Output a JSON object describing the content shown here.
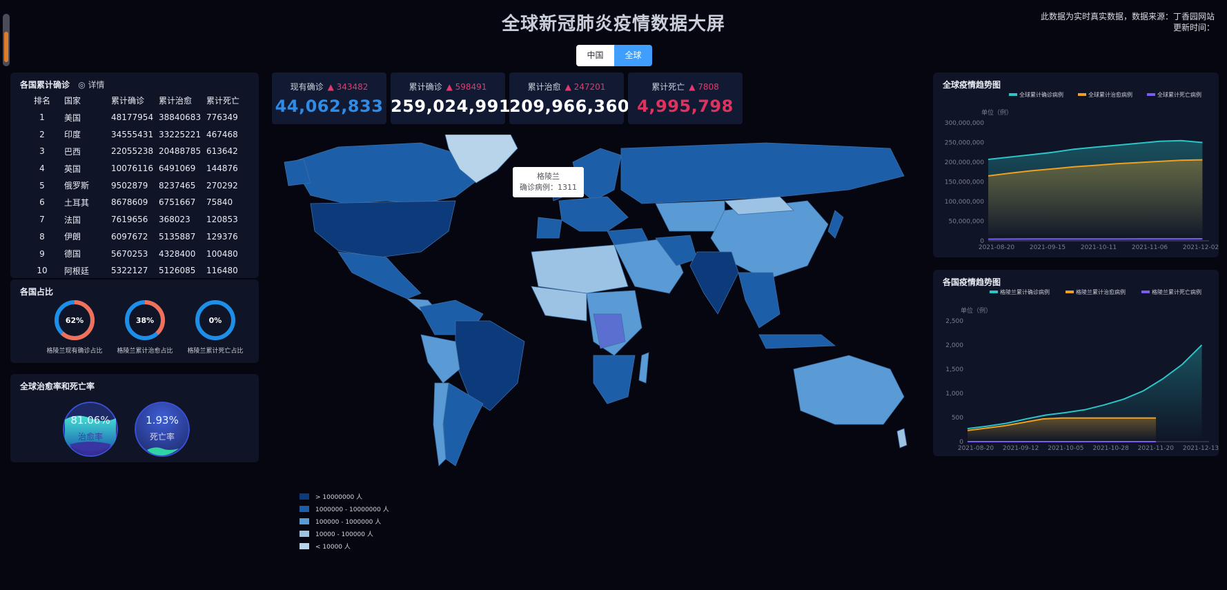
{
  "header": {
    "title": "全球新冠肺炎疫情数据大屏",
    "source": "此数据为实时真实数据，数据来源：丁香园网站",
    "update_time": "更新时间："
  },
  "toggle": {
    "china": "中国",
    "global": "全球"
  },
  "ranking": {
    "title": "各国累计确诊",
    "detail": "详情",
    "headers": [
      "排名",
      "国家",
      "累计确诊",
      "累计治愈",
      "累计死亡"
    ],
    "rows": [
      [
        "1",
        "美国",
        "48177954",
        "38840683",
        "776349"
      ],
      [
        "2",
        "印度",
        "34555431",
        "33225221",
        "467468"
      ],
      [
        "3",
        "巴西",
        "22055238",
        "20488785",
        "613642"
      ],
      [
        "4",
        "英国",
        "10076116",
        "6491069",
        "144876"
      ],
      [
        "5",
        "俄罗斯",
        "9502879",
        "8237465",
        "270292"
      ],
      [
        "6",
        "土耳其",
        "8678609",
        "6751667",
        "75840"
      ],
      [
        "7",
        "法国",
        "7619656",
        "368023",
        "120853"
      ],
      [
        "8",
        "伊朗",
        "6097672",
        "5135887",
        "129376"
      ],
      [
        "9",
        "德国",
        "5670253",
        "4328400",
        "100480"
      ],
      [
        "10",
        "阿根廷",
        "5322127",
        "5126085",
        "116480"
      ]
    ]
  },
  "ratio": {
    "title": "各国占比",
    "items": [
      {
        "pct": "62%",
        "value": 0.62,
        "label": "格陵兰现有确诊占比"
      },
      {
        "pct": "38%",
        "value": 0.38,
        "label": "格陵兰累计治愈占比"
      },
      {
        "pct": "0%",
        "value": 0.0,
        "label": "格陵兰累计死亡占比"
      }
    ]
  },
  "rates": {
    "title": "全球治愈率和死亡率",
    "cure_value": "81.06%",
    "cure_label": "治愈率",
    "death_value": "1.93%",
    "death_label": "死亡率"
  },
  "stats": [
    {
      "label": "现有确诊",
      "delta": "343482",
      "value": "44,062,833",
      "color": "#2e8be6"
    },
    {
      "label": "累计确诊",
      "delta": "598491",
      "value": "259,024,991",
      "color": "#ffffff"
    },
    {
      "label": "累计治愈",
      "delta": "247201",
      "value": "209,966,360",
      "color": "#ffffff"
    },
    {
      "label": "累计死亡",
      "delta": "7808",
      "value": "4,995,798",
      "color": "#e0325f"
    }
  ],
  "map": {
    "tooltip_name": "格陵兰",
    "tooltip_value": "确诊病例：1311",
    "legend": [
      {
        "label": "> 10000000 人",
        "color": "#0d3a7a"
      },
      {
        "label": "1000000 - 10000000 人",
        "color": "#1d5ea8"
      },
      {
        "label": "100000 - 1000000 人",
        "color": "#5a9bd5"
      },
      {
        "label": "10000 - 100000 人",
        "color": "#9cc3e4"
      },
      {
        "label": "< 10000 人",
        "color": "#b7d4ea"
      }
    ]
  },
  "chart_data": [
    {
      "type": "line",
      "title": "全球疫情趋势图",
      "ylabel": "单位（例）",
      "x_ticks": [
        "2021-08-20",
        "2021-09-15",
        "2021-10-11",
        "2021-11-06",
        "2021-12-02"
      ],
      "ylim": [
        0,
        300000000
      ],
      "y_ticks": [
        "0",
        "50,000,000",
        "100,000,000",
        "150,000,000",
        "200,000,000",
        "250,000,000",
        "300,000,000"
      ],
      "series": [
        {
          "name": "全球累计确诊病例",
          "color": "#2bc4c9",
          "values": [
            207000000,
            213000000,
            219000000,
            225000000,
            233000000,
            238000000,
            243000000,
            248000000,
            253000000,
            255000000,
            250000000
          ]
        },
        {
          "name": "全球累计治愈病例",
          "color": "#f0a020",
          "values": [
            165000000,
            172000000,
            178000000,
            183000000,
            188000000,
            192000000,
            196000000,
            199000000,
            202000000,
            205000000,
            206000000
          ]
        },
        {
          "name": "全球累计死亡病例",
          "color": "#7a5cf0",
          "values": [
            4400000,
            4550000,
            4650000,
            4750000,
            4850000,
            4920000,
            5000000,
            5050000,
            5100000,
            5150000,
            5200000
          ]
        }
      ]
    },
    {
      "type": "line",
      "title": "各国疫情趋势图",
      "ylabel": "单位（例）",
      "x_ticks": [
        "2021-08-20",
        "2021-09-12",
        "2021-10-05",
        "2021-10-28",
        "2021-11-20",
        "2021-12-13"
      ],
      "ylim": [
        0,
        2500
      ],
      "y_ticks": [
        "0",
        "500",
        "1,000",
        "1,500",
        "2,000",
        "2,500"
      ],
      "series": [
        {
          "name": "格陵兰累计确诊病例",
          "color": "#2bc4c9",
          "values": [
            270,
            320,
            380,
            470,
            550,
            600,
            660,
            760,
            880,
            1050,
            1300,
            1600,
            2000
          ]
        },
        {
          "name": "格陵兰累计治愈病例",
          "color": "#f0a020",
          "values": [
            230,
            280,
            330,
            400,
            470,
            490,
            490,
            490,
            490,
            490,
            490
          ]
        },
        {
          "name": "格陵兰累计死亡病例",
          "color": "#7a5cf0",
          "values": [
            0,
            0,
            0,
            0,
            0,
            0,
            0,
            0,
            0,
            0,
            0
          ]
        }
      ]
    }
  ]
}
